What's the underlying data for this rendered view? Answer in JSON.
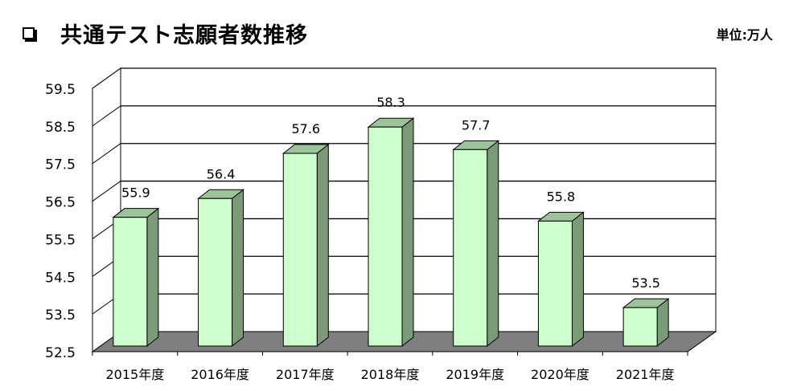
{
  "header": {
    "title": "共通テスト志願者数推移",
    "unit": "単位:万人"
  },
  "chart_data": {
    "type": "bar",
    "title": "共通テスト志願者数推移",
    "unit": "単位:万人",
    "categories": [
      "2015年度",
      "2016年度",
      "2017年度",
      "2018年度",
      "2019年度",
      "2020年度",
      "2021年度"
    ],
    "values": [
      55.9,
      56.4,
      57.6,
      58.3,
      57.7,
      55.8,
      53.5
    ],
    "data_labels": [
      "55.9",
      "56.4",
      "57.6",
      "58.3",
      "57.7",
      "55.8",
      "53.5"
    ],
    "y_ticks": [
      "52.5",
      "53.5",
      "54.5",
      "55.5",
      "56.5",
      "57.5",
      "58.5",
      "59.5"
    ],
    "ylim": [
      52.5,
      59.5
    ],
    "grid": true,
    "style": "3d",
    "colors": {
      "bar_front": "#ccffcc",
      "bar_side": "#7a9a78",
      "bar_top": "#9cc49a",
      "floor": "#7f7f7f"
    }
  }
}
